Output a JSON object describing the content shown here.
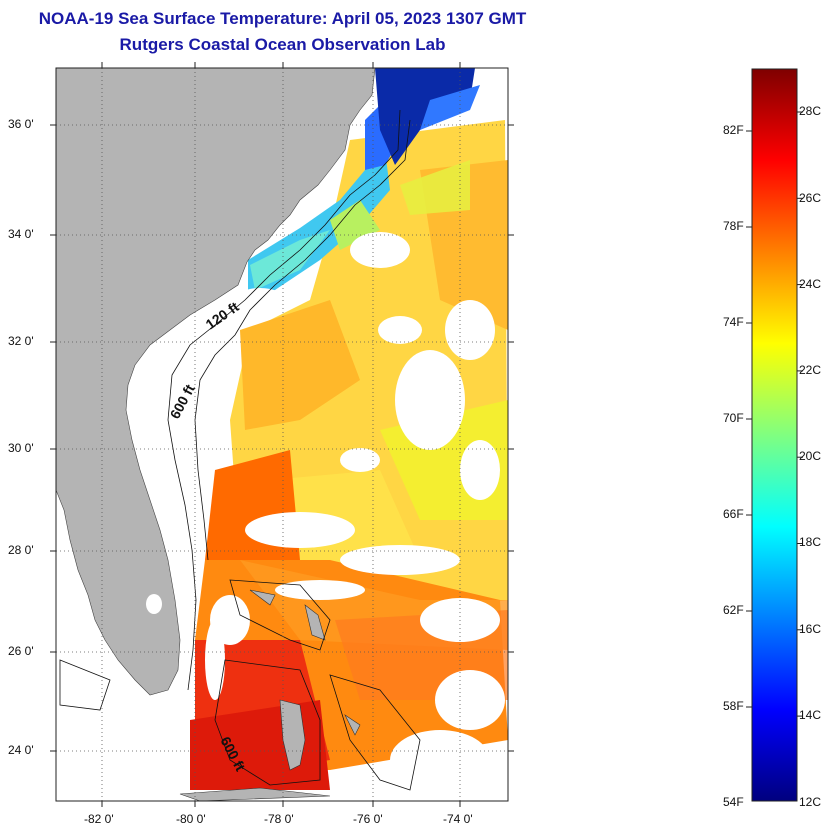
{
  "title": "NOAA-19 Sea Surface Temperature:  April 05, 2023 1307 GMT",
  "subtitle": "Rutgers Coastal Ocean Observation Lab",
  "map": {
    "lat_labels": [
      "36 0'",
      "34 0'",
      "32 0'",
      "30 0'",
      "28 0'",
      "26 0'",
      "24 0'"
    ],
    "lon_labels": [
      "-82 0'",
      "-80 0'",
      "-78 0'",
      "-76 0'",
      "-74 0'"
    ],
    "contour_labels": [
      "120 ft",
      "600 ft",
      "600 ft"
    ],
    "colors": {
      "land": "#b4b4b4",
      "no_data": "#ffffff",
      "grid": "#555555"
    }
  },
  "color_scale": {
    "fahrenheit_labels": [
      "82F",
      "78F",
      "74F",
      "70F",
      "66F",
      "62F",
      "58F",
      "54F"
    ],
    "celsius_labels": [
      "28C",
      "26C",
      "24C",
      "22C",
      "20C",
      "18C",
      "16C",
      "14C",
      "12C"
    ],
    "colors": [
      "#00007f",
      "#0000ff",
      "#0080ff",
      "#00ffff",
      "#80ff80",
      "#ffff00",
      "#ff8000",
      "#ff0000",
      "#7f0000"
    ]
  }
}
